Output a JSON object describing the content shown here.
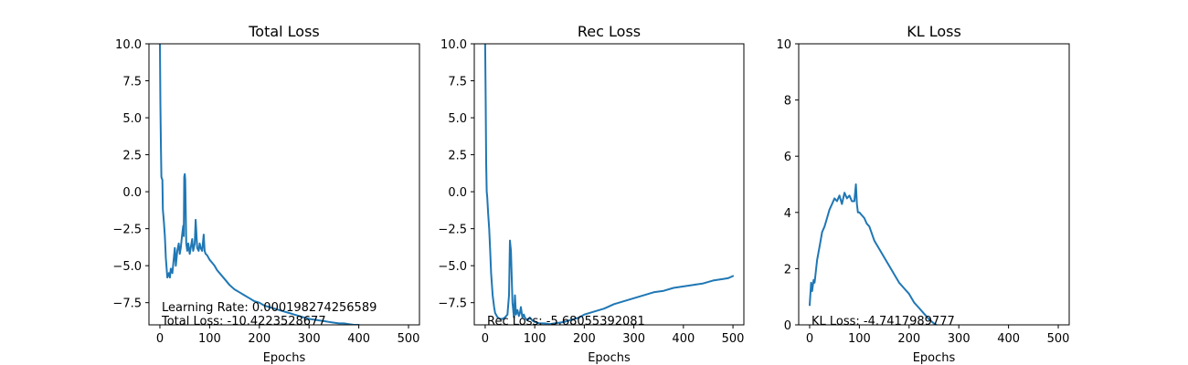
{
  "chart_data": [
    {
      "type": "line",
      "title": "Total Loss",
      "xlabel": "Epochs",
      "ylabel": "",
      "xlim": [
        -22,
        522
      ],
      "ylim": [
        -9.0,
        10.0
      ],
      "xticks": [
        0,
        100,
        200,
        300,
        400,
        500
      ],
      "yticks": [
        -7.5,
        -5.0,
        -2.5,
        0.0,
        2.5,
        5.0,
        7.5,
        10.0
      ],
      "ytick_labels": [
        "−7.5",
        "−5.0",
        "−2.5",
        "0.0",
        "2.5",
        "5.0",
        "7.5",
        "10.0"
      ],
      "grid": false,
      "color": "#1f77b4",
      "annotations": [
        "Learning Rate: 0.000198274256589",
        "Total Loss: -10.4223528677"
      ],
      "series": [
        {
          "x": [
            0,
            1,
            2,
            3,
            4,
            5,
            6,
            8,
            10,
            12,
            15,
            18,
            20,
            22,
            25,
            28,
            30,
            32,
            35,
            38,
            40,
            42,
            45,
            47,
            48,
            49,
            50,
            51,
            52,
            53,
            55,
            57,
            60,
            62,
            65,
            67,
            70,
            72,
            75,
            78,
            80,
            82,
            85,
            88,
            90,
            92,
            95,
            100,
            105,
            110,
            115,
            120,
            130,
            140,
            150,
            160,
            170,
            180,
            190,
            200,
            210,
            220,
            230,
            240,
            250,
            260,
            270,
            280,
            290,
            300,
            310,
            320,
            330,
            340,
            350,
            360,
            370,
            380,
            390,
            400
          ],
          "y": [
            10.0,
            6.0,
            3.0,
            1.0,
            0.9,
            0.8,
            -1.2,
            -2.0,
            -3.0,
            -4.5,
            -5.8,
            -5.5,
            -5.8,
            -5.2,
            -5.5,
            -4.5,
            -3.8,
            -5.0,
            -4.0,
            -3.5,
            -4.2,
            -3.8,
            -2.8,
            -2.3,
            -3.0,
            1.0,
            1.2,
            0.8,
            -1.5,
            -3.5,
            -4.0,
            -3.5,
            -4.2,
            -3.8,
            -3.2,
            -4.0,
            -3.5,
            -1.9,
            -3.8,
            -4.0,
            -3.5,
            -3.8,
            -4.0,
            -2.9,
            -4.0,
            -4.2,
            -4.3,
            -4.6,
            -4.8,
            -5.0,
            -5.3,
            -5.5,
            -5.9,
            -6.3,
            -6.6,
            -6.8,
            -7.0,
            -7.2,
            -7.4,
            -7.5,
            -7.7,
            -7.8,
            -7.9,
            -8.0,
            -8.1,
            -8.2,
            -8.3,
            -8.4,
            -8.5,
            -8.6,
            -8.65,
            -8.7,
            -8.75,
            -8.8,
            -8.85,
            -8.9,
            -8.9,
            -8.95,
            -9.0,
            -9.0
          ]
        }
      ]
    },
    {
      "type": "line",
      "title": "Rec Loss",
      "xlabel": "Epochs",
      "ylabel": "",
      "xlim": [
        -22,
        522
      ],
      "ylim": [
        -9.0,
        10.0
      ],
      "xticks": [
        0,
        100,
        200,
        300,
        400,
        500
      ],
      "yticks": [
        -7.5,
        -5.0,
        -2.5,
        0.0,
        2.5,
        5.0,
        7.5,
        10.0
      ],
      "ytick_labels": [
        "−7.5",
        "−5.0",
        "−2.5",
        "0.0",
        "2.5",
        "5.0",
        "7.5",
        "10.0"
      ],
      "grid": false,
      "color": "#1f77b4",
      "annotations": [
        "Rec Loss: -5.68055392081"
      ],
      "series": [
        {
          "x": [
            0,
            1,
            2,
            3,
            4,
            6,
            8,
            10,
            12,
            15,
            18,
            20,
            25,
            30,
            35,
            40,
            45,
            48,
            50,
            52,
            55,
            58,
            60,
            62,
            65,
            68,
            70,
            72,
            75,
            78,
            80,
            85,
            90,
            95,
            100,
            110,
            120,
            130,
            140,
            150,
            160,
            170,
            180,
            190,
            200,
            220,
            240,
            260,
            280,
            300,
            320,
            340,
            360,
            380,
            400,
            420,
            440,
            460,
            480,
            490,
            500
          ],
          "y": [
            10.0,
            6.0,
            2.0,
            0.0,
            -0.3,
            -1.5,
            -2.5,
            -4.0,
            -5.5,
            -7.0,
            -7.8,
            -8.2,
            -8.5,
            -8.6,
            -8.6,
            -8.5,
            -8.3,
            -7.0,
            -3.3,
            -4.0,
            -7.5,
            -8.5,
            -7.0,
            -8.3,
            -8.0,
            -8.4,
            -8.2,
            -7.8,
            -8.5,
            -8.3,
            -8.5,
            -8.7,
            -8.5,
            -8.7,
            -8.8,
            -8.9,
            -8.9,
            -8.95,
            -8.9,
            -8.85,
            -8.8,
            -8.7,
            -8.6,
            -8.5,
            -8.3,
            -8.1,
            -7.9,
            -7.6,
            -7.4,
            -7.2,
            -7.0,
            -6.8,
            -6.7,
            -6.5,
            -6.4,
            -6.3,
            -6.2,
            -6.0,
            -5.9,
            -5.85,
            -5.7
          ]
        }
      ]
    },
    {
      "type": "line",
      "title": "KL Loss",
      "xlabel": "Epochs",
      "ylabel": "",
      "xlim": [
        -22,
        522
      ],
      "ylim": [
        0,
        10
      ],
      "xticks": [
        0,
        100,
        200,
        300,
        400,
        500
      ],
      "yticks": [
        0,
        2,
        4,
        6,
        8,
        10
      ],
      "ytick_labels": [
        "0",
        "2",
        "4",
        "6",
        "8",
        "10"
      ],
      "grid": false,
      "color": "#1f77b4",
      "annotations": [
        "KL Loss: -4.7417989777"
      ],
      "series": [
        {
          "x": [
            0,
            3,
            5,
            8,
            10,
            15,
            20,
            25,
            30,
            35,
            40,
            45,
            50,
            55,
            60,
            65,
            70,
            75,
            80,
            85,
            90,
            93,
            95,
            97,
            100,
            105,
            110,
            115,
            120,
            130,
            140,
            150,
            160,
            170,
            180,
            190,
            200,
            210,
            220,
            230,
            240,
            250,
            255
          ],
          "y": [
            0.7,
            1.5,
            1.2,
            1.6,
            1.5,
            2.3,
            2.8,
            3.3,
            3.5,
            3.8,
            4.1,
            4.3,
            4.5,
            4.4,
            4.6,
            4.3,
            4.7,
            4.5,
            4.6,
            4.4,
            4.4,
            5.0,
            4.3,
            4.0,
            4.0,
            3.9,
            3.8,
            3.6,
            3.5,
            3.0,
            2.7,
            2.4,
            2.1,
            1.8,
            1.5,
            1.3,
            1.1,
            0.8,
            0.6,
            0.4,
            0.2,
            0.05,
            0.0
          ]
        }
      ]
    }
  ]
}
